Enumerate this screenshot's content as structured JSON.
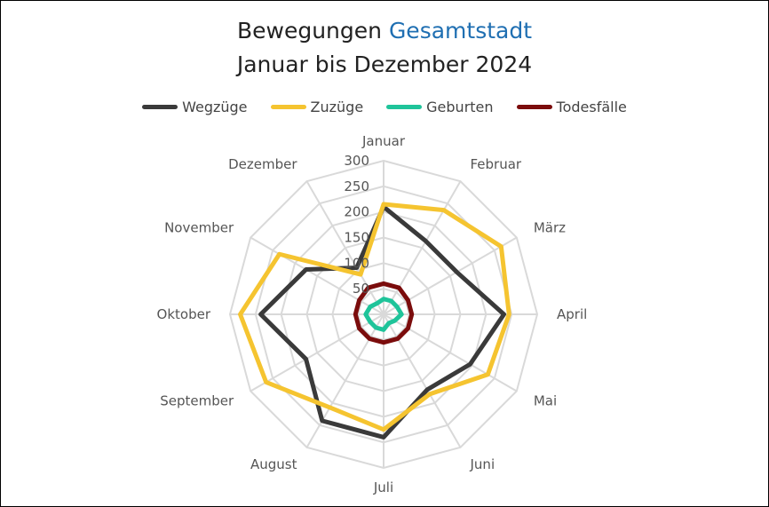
{
  "title": {
    "part1": "Bewegungen ",
    "part2": "Gesamtstadt",
    "line2": "Januar bis Dezember 2024",
    "accent_color": "#1f6fb2"
  },
  "chart_data": {
    "type": "radar",
    "categories": [
      "Januar",
      "Februar",
      "März",
      "April",
      "Mai",
      "Juni",
      "Juli",
      "August",
      "September",
      "Oktober",
      "November",
      "Dezember"
    ],
    "rlim": [
      0,
      300
    ],
    "ticks": [
      "50",
      "100",
      "150",
      "200",
      "250",
      "300"
    ],
    "tick_values": [
      50,
      100,
      150,
      200,
      250,
      300
    ],
    "legend_position": "top",
    "series": [
      {
        "name": "Wegzüge",
        "color": "#3a3a3a",
        "values": [
          210,
          165,
          165,
          235,
          195,
          170,
          240,
          240,
          175,
          240,
          175,
          105
        ]
      },
      {
        "name": "Zuzüge",
        "color": "#f5c430",
        "values": [
          215,
          235,
          265,
          245,
          235,
          180,
          225,
          210,
          265,
          280,
          235,
          90
        ]
      },
      {
        "name": "Geburten",
        "color": "#1fc49a",
        "values": [
          30,
          30,
          30,
          35,
          25,
          20,
          30,
          30,
          30,
          35,
          30,
          25
        ]
      },
      {
        "name": "Todesfälle",
        "color": "#7b0c0c",
        "values": [
          60,
          60,
          55,
          55,
          55,
          55,
          55,
          55,
          55,
          55,
          55,
          60
        ]
      }
    ]
  }
}
